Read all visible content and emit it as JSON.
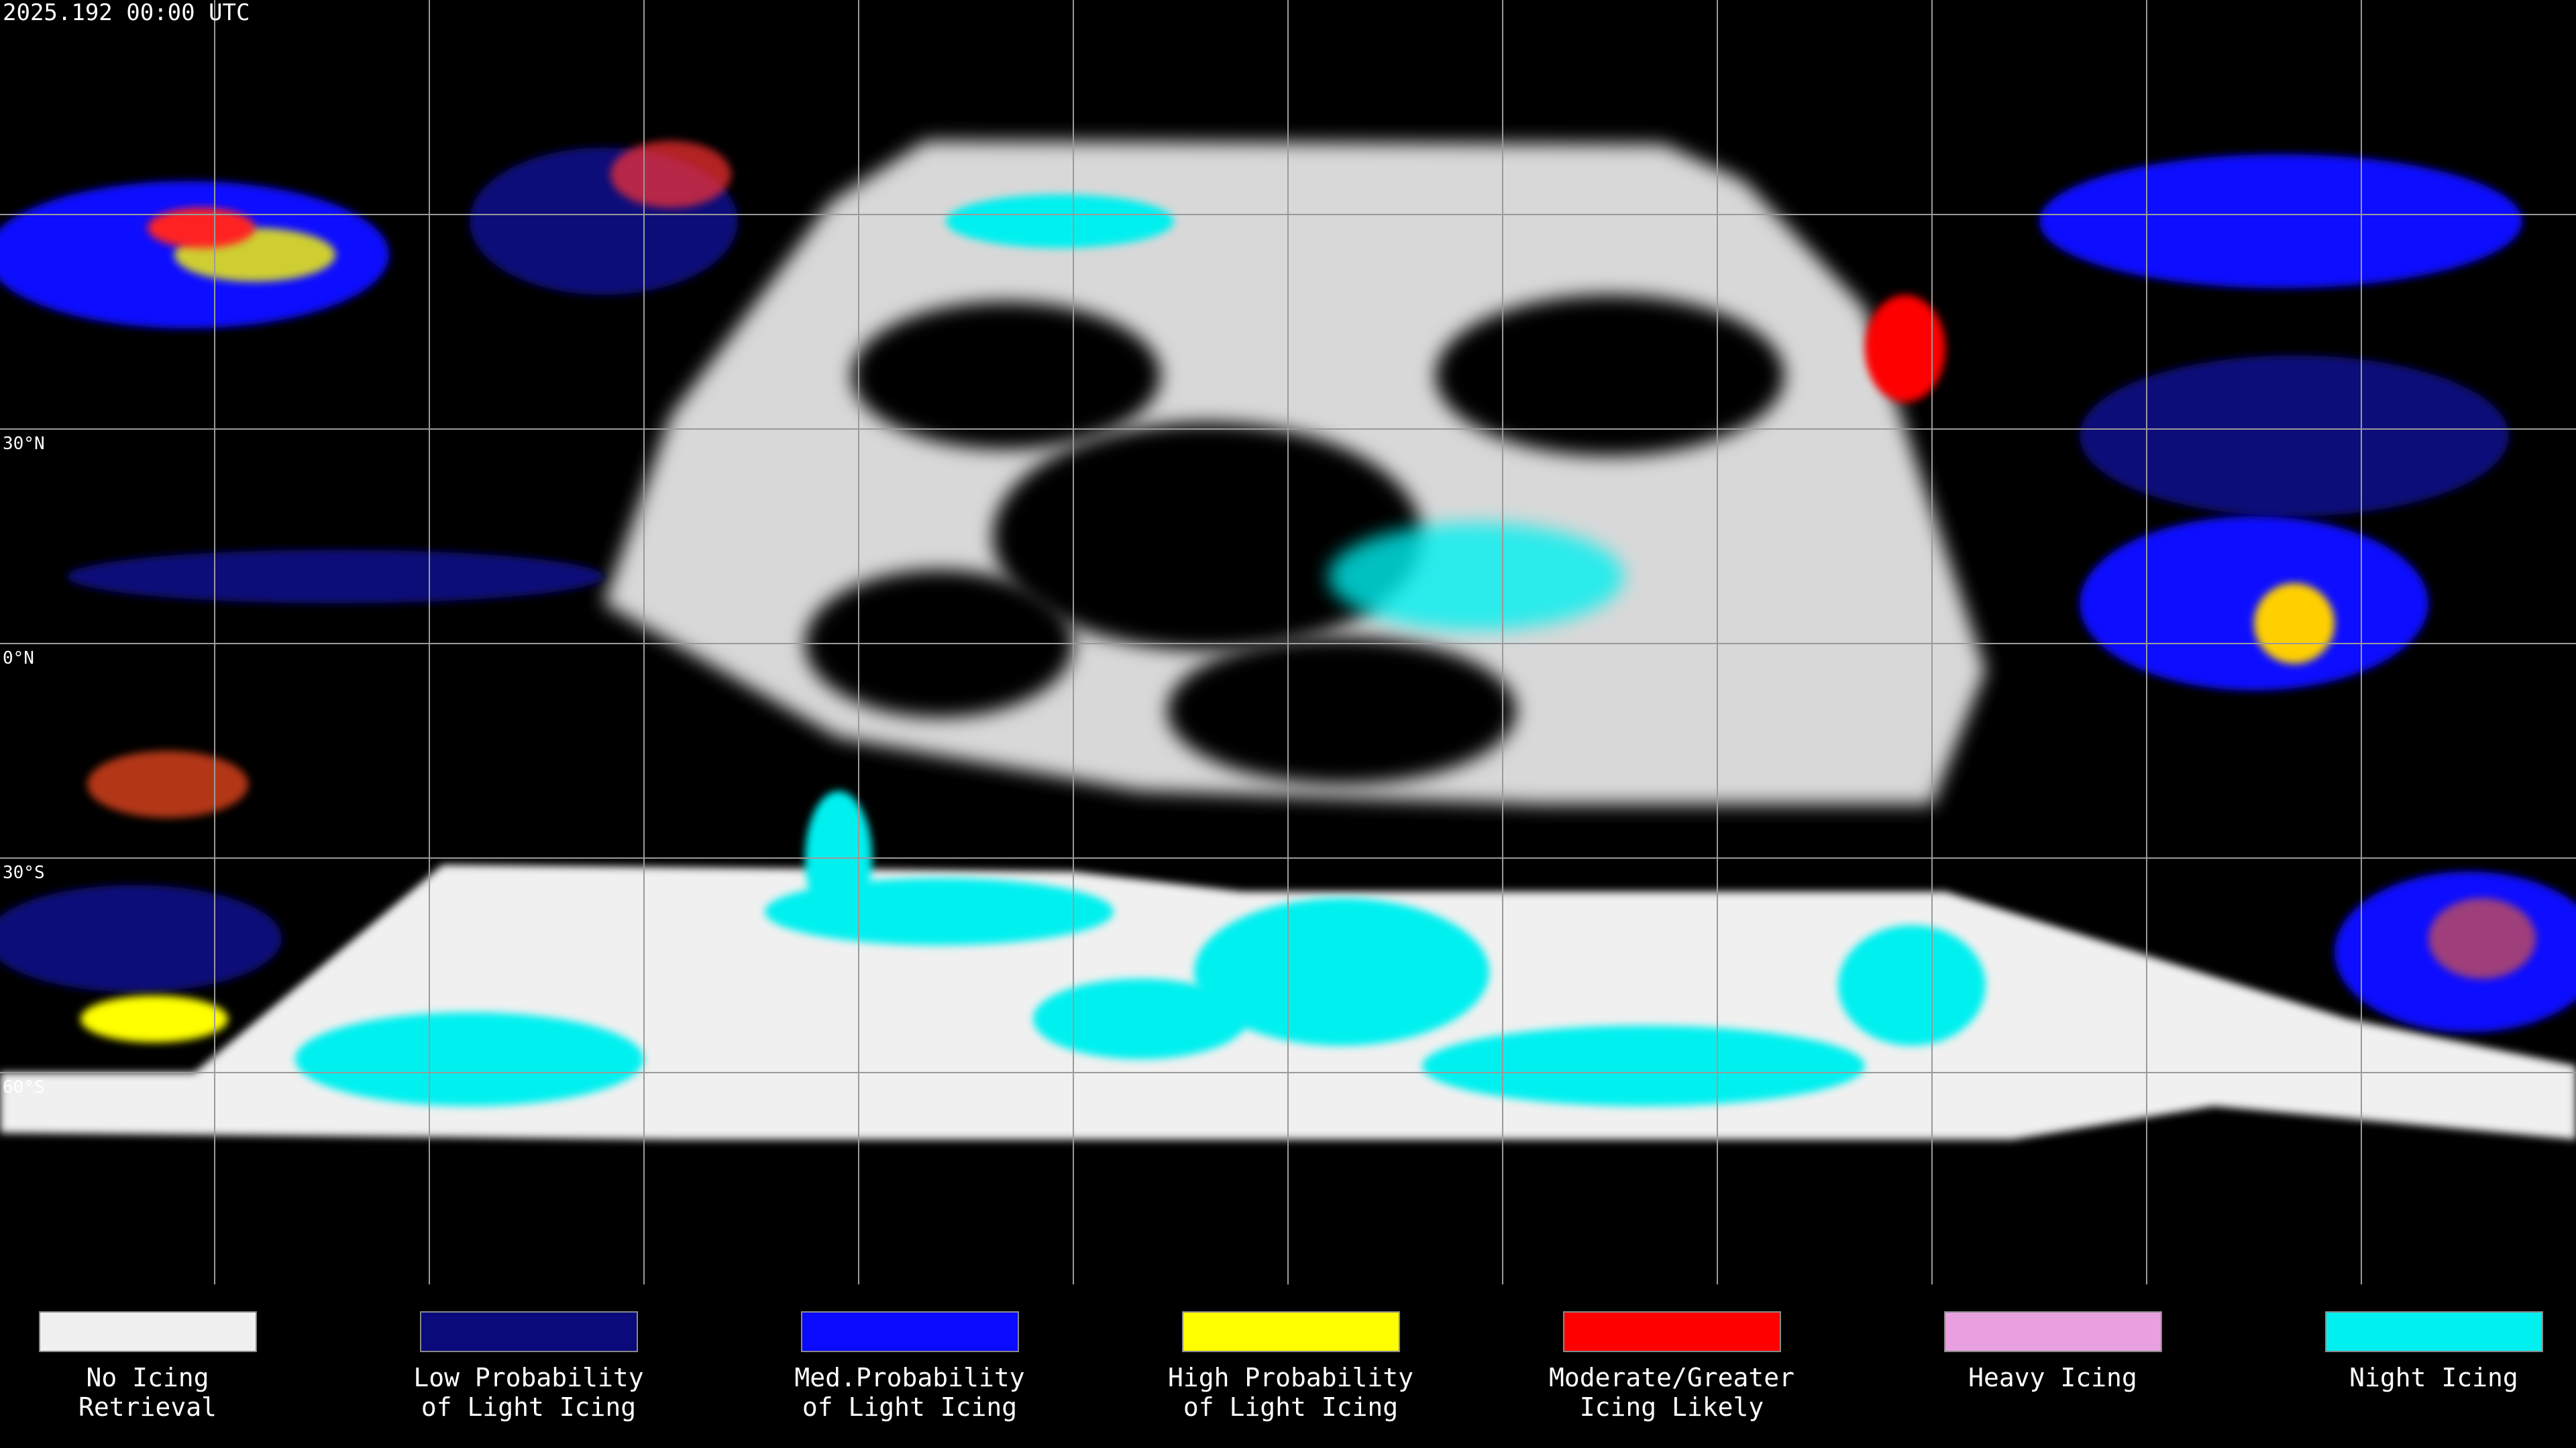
{
  "header": {
    "title": "2025.192 00:00 UTC"
  },
  "lat_labels": [
    "30°N",
    "0°N",
    "30°S",
    "60°S"
  ],
  "legend": [
    {
      "lines": [
        "No Icing",
        "Retrieval"
      ],
      "color": "#f0f0f0"
    },
    {
      "lines": [
        "Low Probability",
        "of Light Icing"
      ],
      "color": "#0a0a7a"
    },
    {
      "lines": [
        "Med.Probability",
        "of Light Icing"
      ],
      "color": "#0a0aff"
    },
    {
      "lines": [
        "High Probability",
        "of Light Icing"
      ],
      "color": "#ffff00"
    },
    {
      "lines": [
        "Moderate/Greater",
        "Icing Likely"
      ],
      "color": "#ff0000"
    },
    {
      "lines": [
        "Heavy Icing"
      ],
      "color": "#e8a0e0"
    },
    {
      "lines": [
        "Night Icing"
      ],
      "color": "#00f0f0"
    }
  ]
}
